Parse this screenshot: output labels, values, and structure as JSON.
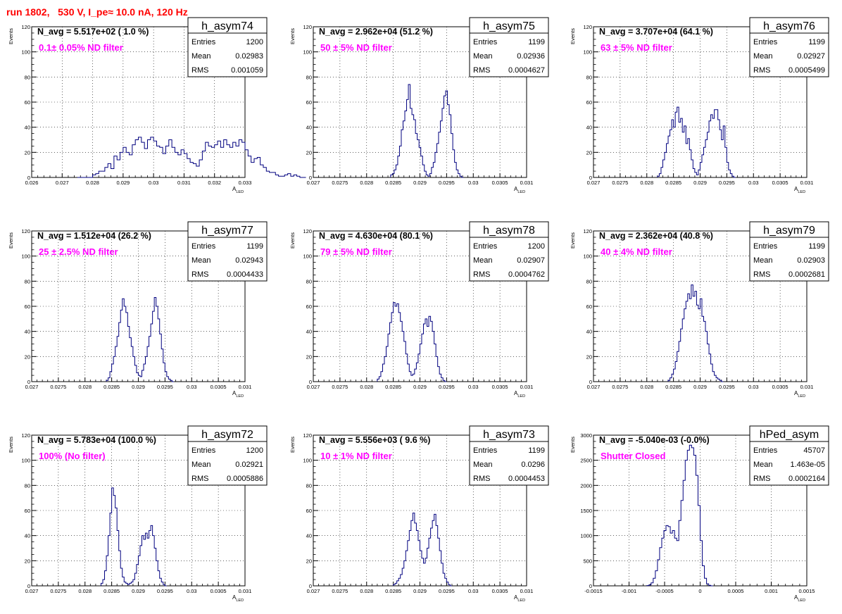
{
  "page": {
    "title": "run 1802,   530 V, I_pe≈ 10.0 nA, 120 Hz"
  },
  "chart_data": [
    {
      "type": "histogram",
      "name": "h_asym74",
      "nlabel": "N_avg = 5.517e+02 ( 1.0 %)",
      "filter": "0.1± 0.05% ND filter",
      "stats": {
        "entries": "1200",
        "mean": "0.02983",
        "rms": "0.001059"
      },
      "ylabel": "Events",
      "xlabel": "A",
      "xlabel_sub": "LED",
      "xlim": [
        0.026,
        0.033
      ],
      "ylim": [
        0,
        120
      ],
      "xticks": [
        0.026,
        0.027,
        0.028,
        0.029,
        0.03,
        0.031,
        0.032,
        0.033
      ],
      "xticklabels": [
        "0.026",
        "0.027",
        "0.028",
        "0.029",
        "0.03",
        "0.031",
        "0.032",
        "0.033"
      ],
      "yticks": [
        0,
        20,
        40,
        60,
        80,
        100,
        120
      ],
      "yticklabels": [
        "0",
        "20",
        "40",
        "60",
        "80",
        "100",
        "120"
      ],
      "bin_start": 0.0275,
      "bin_width": 0.0001,
      "counts": [
        0,
        0,
        0,
        0,
        0,
        2,
        3,
        5,
        5,
        8,
        11,
        7,
        17,
        14,
        20,
        24,
        20,
        18,
        26,
        30,
        32,
        28,
        23,
        30,
        32,
        29,
        25,
        24,
        19,
        25,
        30,
        24,
        20,
        18,
        22,
        19,
        15,
        12,
        11,
        9,
        14,
        21,
        28,
        25,
        24,
        26,
        29,
        24,
        30,
        26,
        24,
        28,
        25,
        30,
        28,
        22,
        17,
        12,
        15,
        16,
        10,
        8,
        5,
        4,
        4,
        2,
        1,
        1,
        2,
        3,
        1,
        2,
        1,
        0,
        0
      ]
    },
    {
      "type": "histogram",
      "name": "h_asym75",
      "nlabel": "N_avg = 2.962e+04 (51.2 %)",
      "filter": "50 ± 5% ND filter",
      "stats": {
        "entries": "1199",
        "mean": "0.02936",
        "rms": "0.0004627"
      },
      "ylabel": "Events",
      "xlabel": "A",
      "xlabel_sub": "LED",
      "xlim": [
        0.027,
        0.031
      ],
      "ylim": [
        0,
        120
      ],
      "xticks": [
        0.027,
        0.0275,
        0.028,
        0.0285,
        0.029,
        0.0295,
        0.03,
        0.0305,
        0.031
      ],
      "xticklabels": [
        "0.027",
        "0.0275",
        "0.028",
        "0.0285",
        "0.029",
        "0.0295",
        "0.03",
        "0.0305",
        "0.031"
      ],
      "yticks": [
        0,
        20,
        40,
        60,
        80,
        100,
        120
      ],
      "yticklabels": [
        "0",
        "20",
        "40",
        "60",
        "80",
        "100",
        "120"
      ],
      "bin_start": 0.02845,
      "bin_width": 3.33e-05,
      "counts": [
        2,
        3,
        6,
        10,
        17,
        25,
        38,
        45,
        53,
        62,
        74,
        55,
        50,
        46,
        35,
        30,
        24,
        17,
        10,
        5,
        2,
        1,
        3,
        8,
        12,
        20,
        27,
        36,
        45,
        55,
        65,
        69,
        58,
        50,
        35,
        22,
        12,
        6,
        3,
        1,
        0
      ]
    },
    {
      "type": "histogram",
      "name": "h_asym76",
      "nlabel": "N_avg = 3.707e+04 (64.1 %)",
      "filter": "63 ± 5% ND filter",
      "stats": {
        "entries": "1199",
        "mean": "0.02927",
        "rms": "0.0005499"
      },
      "ylabel": "Events",
      "xlabel": "A",
      "xlabel_sub": "LED",
      "xlim": [
        0.027,
        0.031
      ],
      "ylim": [
        0,
        120
      ],
      "xticks": [
        0.027,
        0.0275,
        0.028,
        0.0285,
        0.029,
        0.0295,
        0.03,
        0.0305,
        0.031
      ],
      "xticklabels": [
        "0.027",
        "0.0275",
        "0.028",
        "0.0285",
        "0.029",
        "0.0295",
        "0.03",
        "0.0305",
        "0.031"
      ],
      "yticks": [
        0,
        20,
        40,
        60,
        80,
        100,
        120
      ],
      "yticklabels": [
        "0",
        "20",
        "40",
        "60",
        "80",
        "100",
        "120"
      ],
      "bin_start": 0.0282,
      "bin_width": 3.33e-05,
      "counts": [
        1,
        3,
        8,
        14,
        20,
        27,
        33,
        38,
        46,
        40,
        52,
        56,
        44,
        47,
        36,
        41,
        27,
        31,
        22,
        14,
        7,
        4,
        2,
        6,
        12,
        18,
        24,
        30,
        36,
        45,
        50,
        47,
        54,
        54,
        46,
        38,
        30,
        41,
        24,
        12,
        6,
        3,
        1,
        0
      ]
    },
    {
      "type": "histogram",
      "name": "h_asym77",
      "nlabel": "N_avg = 1.512e+04 (26.2 %)",
      "filter": "25 ± 2.5% ND filter",
      "stats": {
        "entries": "1199",
        "mean": "0.02943",
        "rms": "0.0004433"
      },
      "ylabel": "Events",
      "xlabel": "A",
      "xlabel_sub": "LED",
      "xlim": [
        0.027,
        0.031
      ],
      "ylim": [
        0,
        120
      ],
      "xticks": [
        0.027,
        0.0275,
        0.028,
        0.0285,
        0.029,
        0.0295,
        0.03,
        0.0305,
        0.031
      ],
      "xticklabels": [
        "0.027",
        "0.0275",
        "0.028",
        "0.0285",
        "0.029",
        "0.0295",
        "0.03",
        "0.0305",
        "0.031"
      ],
      "yticks": [
        0,
        20,
        40,
        60,
        80,
        100,
        120
      ],
      "yticklabels": [
        "0",
        "20",
        "40",
        "60",
        "80",
        "100",
        "120"
      ],
      "bin_start": 0.0284,
      "bin_width": 3.33e-05,
      "counts": [
        1,
        3,
        8,
        14,
        20,
        28,
        36,
        47,
        57,
        66,
        60,
        55,
        44,
        35,
        28,
        20,
        13,
        7,
        5,
        4,
        9,
        14,
        20,
        28,
        36,
        46,
        56,
        67,
        60,
        50,
        38,
        26,
        15,
        8,
        4,
        2,
        1,
        0
      ]
    },
    {
      "type": "histogram",
      "name": "h_asym78",
      "nlabel": "N_avg = 4.630e+04 (80.1 %)",
      "filter": "79 ± 5% ND filter",
      "stats": {
        "entries": "1200",
        "mean": "0.02907",
        "rms": "0.0004762"
      },
      "ylabel": "Events",
      "xlabel": "A",
      "xlabel_sub": "LED",
      "xlim": [
        0.027,
        0.031
      ],
      "ylim": [
        0,
        120
      ],
      "xticks": [
        0.027,
        0.0275,
        0.028,
        0.0285,
        0.029,
        0.0295,
        0.03,
        0.0305,
        0.031
      ],
      "xticklabels": [
        "0.027",
        "0.0275",
        "0.028",
        "0.0285",
        "0.029",
        "0.0295",
        "0.03",
        "0.0305",
        "0.031"
      ],
      "yticks": [
        0,
        20,
        40,
        60,
        80,
        100,
        120
      ],
      "yticklabels": [
        "0",
        "20",
        "40",
        "60",
        "80",
        "100",
        "120"
      ],
      "bin_start": 0.0282,
      "bin_width": 3.33e-05,
      "counts": [
        2,
        4,
        8,
        14,
        20,
        28,
        38,
        47,
        55,
        63,
        60,
        62,
        55,
        48,
        40,
        32,
        22,
        14,
        8,
        5,
        6,
        10,
        15,
        22,
        30,
        38,
        46,
        50,
        44,
        52,
        48,
        40,
        30,
        20,
        12,
        6,
        3,
        1,
        0
      ]
    },
    {
      "type": "histogram",
      "name": "h_asym79",
      "nlabel": "N_avg = 2.362e+04 (40.8 %)",
      "filter": "40 ± 4% ND filter",
      "stats": {
        "entries": "1199",
        "mean": "0.02903",
        "rms": "0.0002681"
      },
      "ylabel": "Events",
      "xlabel": "A",
      "xlabel_sub": "LED",
      "xlim": [
        0.027,
        0.031
      ],
      "ylim": [
        0,
        120
      ],
      "xticks": [
        0.027,
        0.0275,
        0.028,
        0.0285,
        0.029,
        0.0295,
        0.03,
        0.0305,
        0.031
      ],
      "xticklabels": [
        "0.027",
        "0.0275",
        "0.028",
        "0.0285",
        "0.029",
        "0.0295",
        "0.03",
        "0.0305",
        "0.031"
      ],
      "yticks": [
        0,
        20,
        40,
        60,
        80,
        100,
        120
      ],
      "yticklabels": [
        "0",
        "20",
        "40",
        "60",
        "80",
        "100",
        "120"
      ],
      "bin_start": 0.0284,
      "bin_width": 3.33e-05,
      "counts": [
        1,
        3,
        6,
        10,
        16,
        24,
        32,
        42,
        50,
        58,
        64,
        70,
        66,
        77,
        68,
        72,
        61,
        58,
        66,
        52,
        48,
        40,
        30,
        22,
        14,
        8,
        5,
        3,
        2,
        1,
        0
      ]
    },
    {
      "type": "histogram",
      "name": "h_asym72",
      "nlabel": "N_avg = 5.783e+04 (100.0 %)",
      "filter": "100% (No filter)",
      "stats": {
        "entries": "1200",
        "mean": "0.02921",
        "rms": "0.0005886"
      },
      "ylabel": "Events",
      "xlabel": "A",
      "xlabel_sub": "LED",
      "xlim": [
        0.027,
        0.031
      ],
      "ylim": [
        0,
        120
      ],
      "xticks": [
        0.027,
        0.0275,
        0.028,
        0.0285,
        0.029,
        0.0295,
        0.03,
        0.0305,
        0.031
      ],
      "xticklabels": [
        "0.027",
        "0.0275",
        "0.028",
        "0.0285",
        "0.029",
        "0.0295",
        "0.03",
        "0.0305",
        "0.031"
      ],
      "yticks": [
        0,
        20,
        40,
        60,
        80,
        100,
        120
      ],
      "yticklabels": [
        "0",
        "20",
        "40",
        "60",
        "80",
        "100",
        "120"
      ],
      "bin_start": 0.0283,
      "bin_width": 3.33e-05,
      "counts": [
        2,
        5,
        12,
        24,
        40,
        58,
        78,
        72,
        62,
        44,
        28,
        14,
        7,
        3,
        2,
        1,
        2,
        3,
        5,
        10,
        17,
        24,
        32,
        40,
        37,
        42,
        38,
        44,
        48,
        40,
        30,
        20,
        12,
        6,
        3,
        1,
        0
      ]
    },
    {
      "type": "histogram",
      "name": "h_asym73",
      "nlabel": "N_avg = 5.556e+03 ( 9.6 %)",
      "filter": "10 ± 1% ND filter",
      "stats": {
        "entries": "1199",
        "mean": "0.0296",
        "rms": "0.0004453"
      },
      "ylabel": "Events",
      "xlabel": "A",
      "xlabel_sub": "LED",
      "xlim": [
        0.027,
        0.031
      ],
      "ylim": [
        0,
        120
      ],
      "xticks": [
        0.027,
        0.0275,
        0.028,
        0.0285,
        0.029,
        0.0295,
        0.03,
        0.0305,
        0.031
      ],
      "xticklabels": [
        "0.027",
        "0.0275",
        "0.028",
        "0.0285",
        "0.029",
        "0.0295",
        "0.03",
        "0.0305",
        "0.031"
      ],
      "yticks": [
        0,
        20,
        40,
        60,
        80,
        100,
        120
      ],
      "yticklabels": [
        "0",
        "20",
        "40",
        "60",
        "80",
        "100",
        "120"
      ],
      "bin_start": 0.0285,
      "bin_width": 3.33e-05,
      "counts": [
        1,
        2,
        4,
        6,
        9,
        14,
        20,
        28,
        36,
        44,
        52,
        58,
        50,
        44,
        36,
        28,
        22,
        18,
        22,
        30,
        38,
        46,
        52,
        57,
        48,
        38,
        28,
        18,
        10,
        6,
        3,
        1,
        0
      ]
    },
    {
      "type": "histogram",
      "name": "hPed_asym",
      "nlabel": "N_avg = -5.040e-03 (-0.0%)",
      "filter": "Shutter Closed",
      "stats": {
        "entries": "45707",
        "mean": "1.463e-05",
        "rms": "0.0002164"
      },
      "ylabel": "Events",
      "xlabel": "A",
      "xlabel_sub": "LED",
      "xlim": [
        -0.0015,
        0.0015
      ],
      "ylim": [
        0,
        3000
      ],
      "xticks": [
        -0.0015,
        -0.001,
        -0.0005,
        0,
        0.0005,
        0.001,
        0.0015
      ],
      "xticklabels": [
        "-0.0015",
        "-0.001",
        "-0.0005",
        "0",
        "0.0005",
        "0.001",
        "0.0015"
      ],
      "yticks": [
        0,
        500,
        1000,
        1500,
        2000,
        2500,
        3000
      ],
      "yticklabels": [
        "0",
        "500",
        "1000",
        "1500",
        "2000",
        "2500",
        "3000"
      ],
      "bin_start": -0.00075,
      "bin_width": 3e-05,
      "counts": [
        5,
        20,
        60,
        150,
        300,
        520,
        760,
        950,
        1100,
        1200,
        1180,
        1050,
        1100,
        950,
        900,
        1300,
        1700,
        2100,
        2500,
        2700,
        2800,
        2750,
        2600,
        2200,
        1600,
        900,
        400,
        150,
        40,
        10,
        0
      ]
    }
  ]
}
